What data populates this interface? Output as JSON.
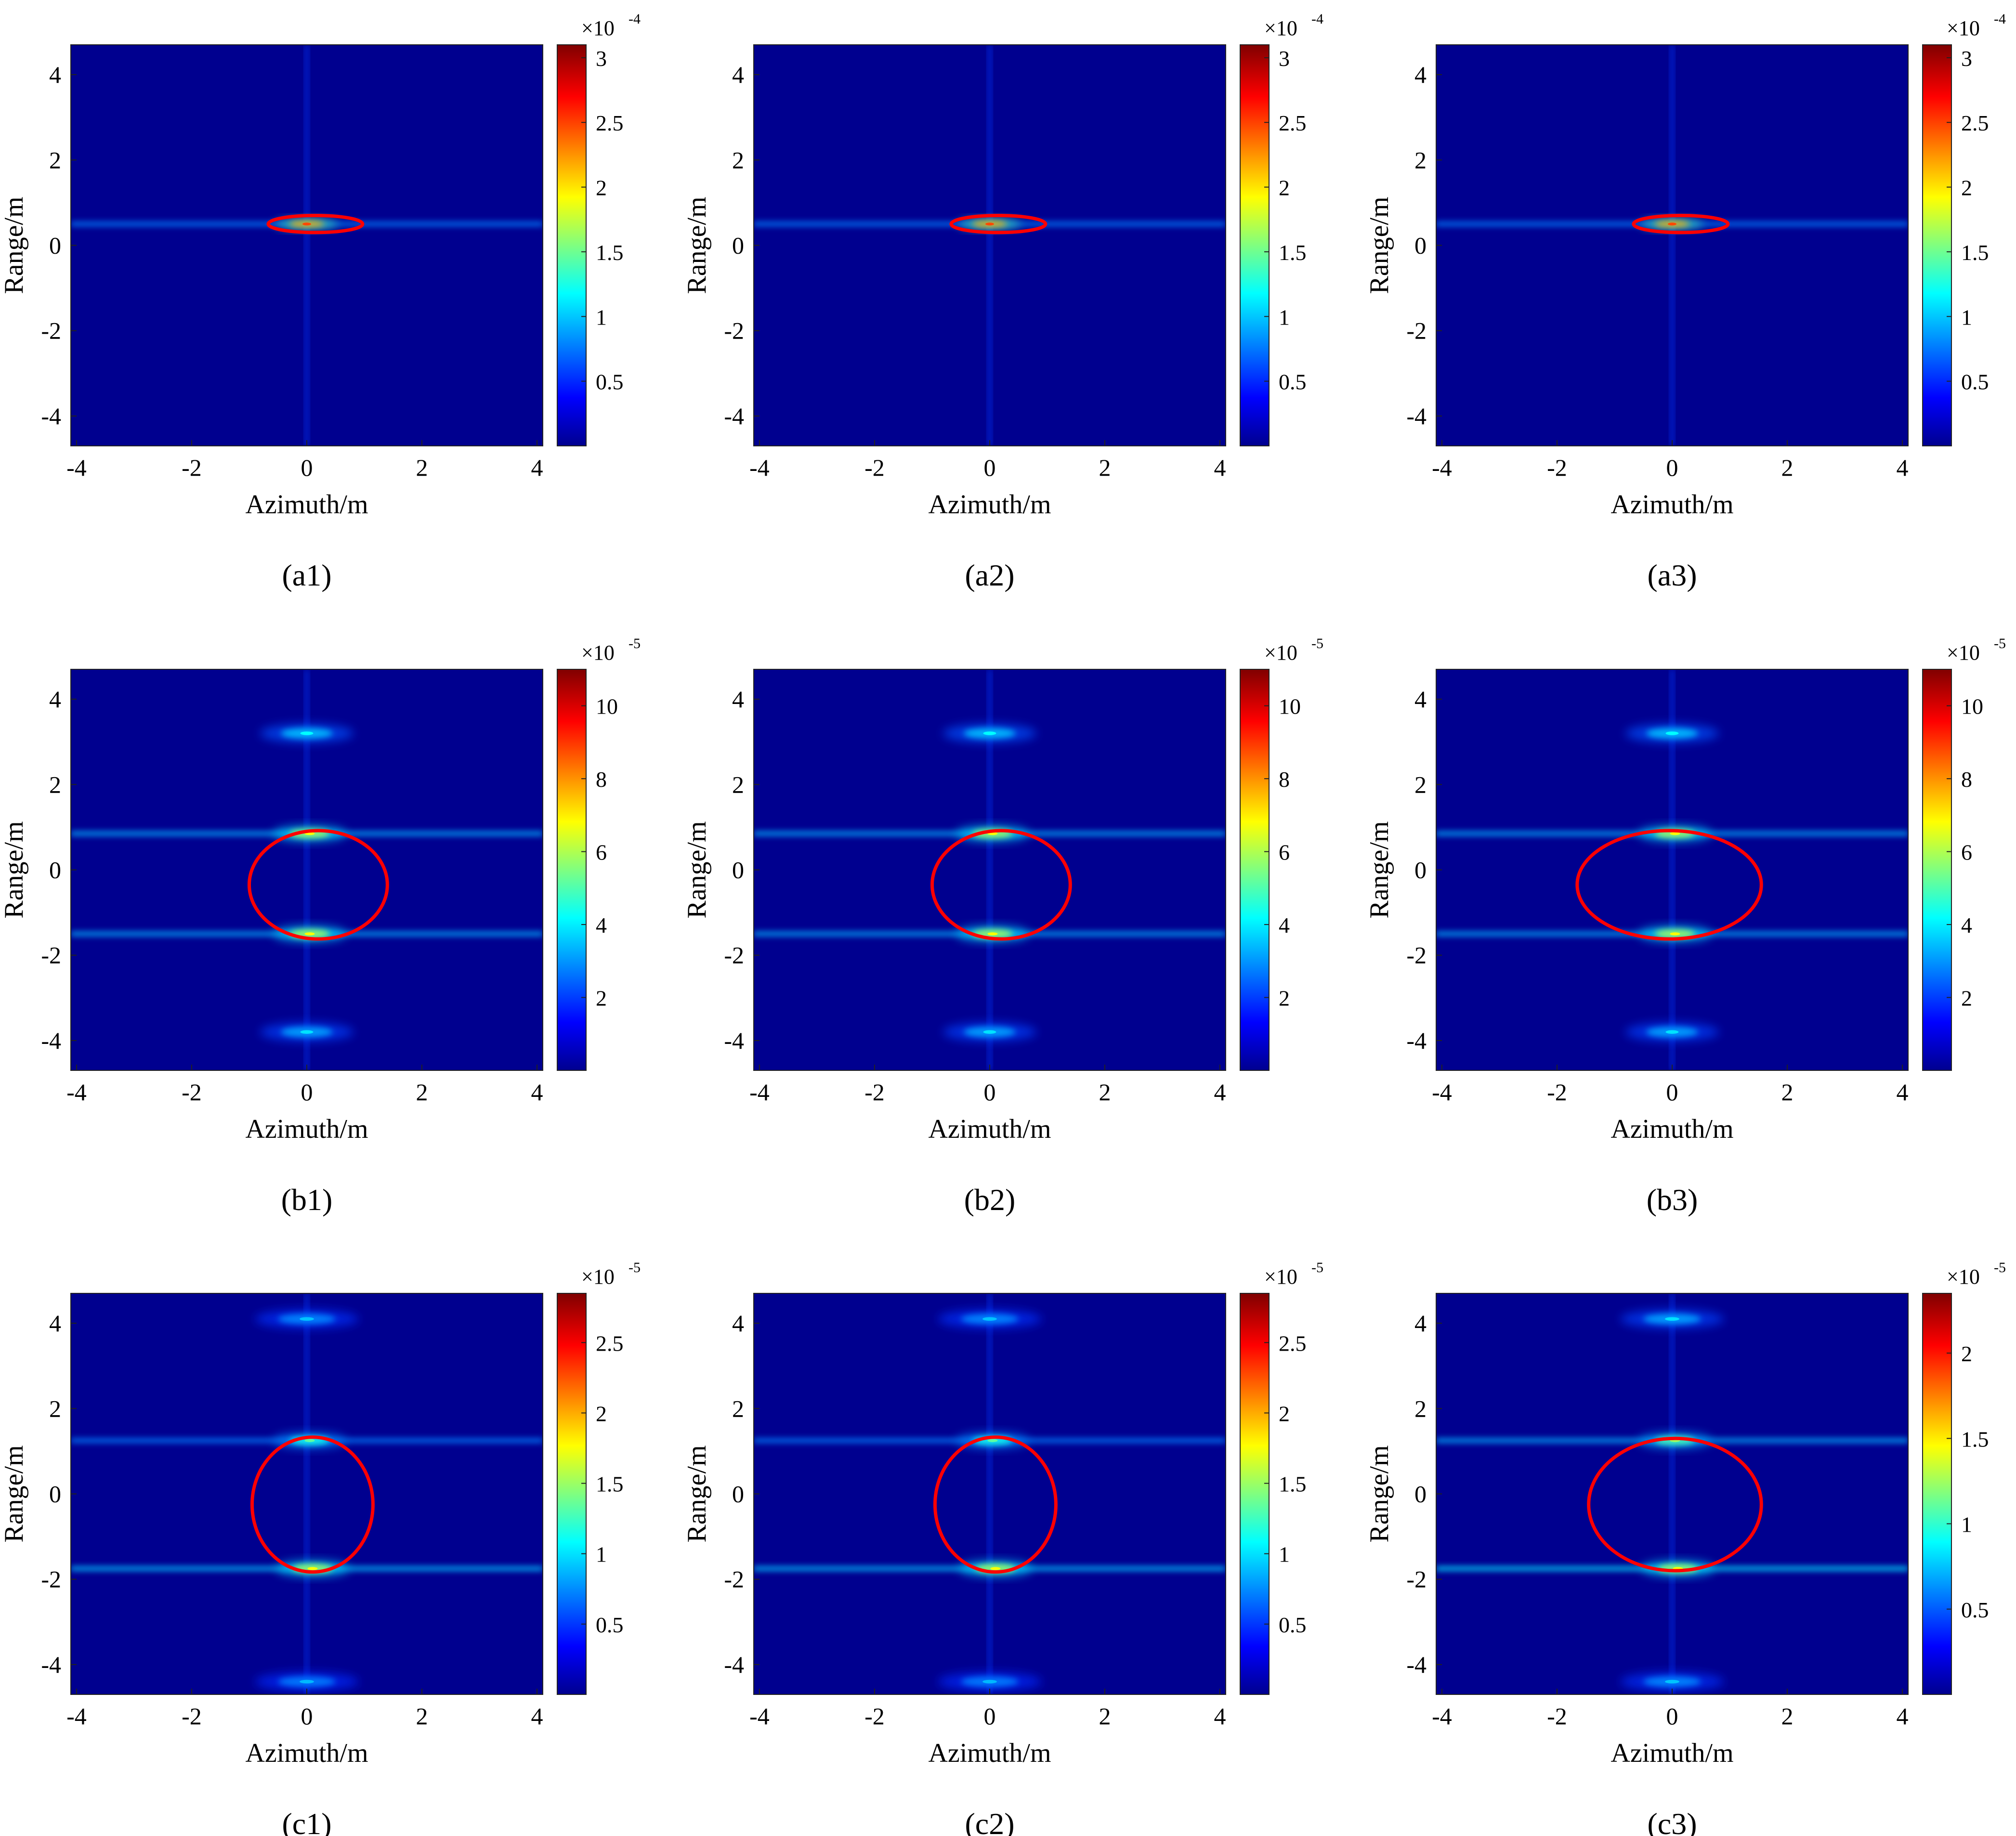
{
  "figure": {
    "colorscale": [
      "#00008f",
      "#0000ff",
      "#00ffff",
      "#ffff00",
      "#ff0000",
      "#800000"
    ],
    "background_color": "#00008f",
    "ellipse_color": "#ff0000"
  },
  "chart_data": [
    {
      "type": "heatmap",
      "panel_label": "(a1)",
      "xlabel": "Azimuth/m",
      "ylabel": "Range/m",
      "xlim": [
        -4.1,
        4.1
      ],
      "ylim": [
        -4.7,
        4.7
      ],
      "xticks": [
        -4,
        -2,
        0,
        2,
        4
      ],
      "yticks": [
        -4,
        -2,
        0,
        2,
        4
      ],
      "colorbar": {
        "max": 3.1,
        "ticks": [
          0.5,
          1,
          1.5,
          2,
          2.5,
          3
        ],
        "ticklabels": [
          "0.5",
          "1",
          "1.5",
          "2",
          "2.5",
          "3"
        ],
        "exponent_label": "×10",
        "exponent": "-4"
      },
      "hotspots": [
        {
          "x": 0.0,
          "y": 0.5,
          "intensity": 1.0,
          "sx": 0.3,
          "sy": 0.07
        }
      ],
      "sidelobes": [
        {
          "y": 0.5,
          "axis": "horizontal",
          "intensity": 0.15
        }
      ],
      "ellipse": {
        "cx": 0.15,
        "cy": 0.5,
        "rx": 0.82,
        "ry": 0.2
      }
    },
    {
      "type": "heatmap",
      "panel_label": "(a2)",
      "xlabel": "Azimuth/m",
      "ylabel": "Range/m",
      "xlim": [
        -4.1,
        4.1
      ],
      "ylim": [
        -4.7,
        4.7
      ],
      "xticks": [
        -4,
        -2,
        0,
        2,
        4
      ],
      "yticks": [
        -4,
        -2,
        0,
        2,
        4
      ],
      "colorbar": {
        "max": 3.1,
        "ticks": [
          0.5,
          1,
          1.5,
          2,
          2.5,
          3
        ],
        "ticklabels": [
          "0.5",
          "1",
          "1.5",
          "2",
          "2.5",
          "3"
        ],
        "exponent_label": "×10",
        "exponent": "-4"
      },
      "hotspots": [
        {
          "x": 0.0,
          "y": 0.5,
          "intensity": 1.0,
          "sx": 0.3,
          "sy": 0.07
        }
      ],
      "sidelobes": [
        {
          "y": 0.5,
          "axis": "horizontal",
          "intensity": 0.15
        }
      ],
      "ellipse": {
        "cx": 0.15,
        "cy": 0.5,
        "rx": 0.82,
        "ry": 0.2
      }
    },
    {
      "type": "heatmap",
      "panel_label": "(a3)",
      "xlabel": "Azimuth/m",
      "ylabel": "Range/m",
      "xlim": [
        -4.1,
        4.1
      ],
      "ylim": [
        -4.7,
        4.7
      ],
      "xticks": [
        -4,
        -2,
        0,
        2,
        4
      ],
      "yticks": [
        -4,
        -2,
        0,
        2,
        4
      ],
      "colorbar": {
        "max": 3.1,
        "ticks": [
          0.5,
          1,
          1.5,
          2,
          2.5,
          3
        ],
        "ticklabels": [
          "0.5",
          "1",
          "1.5",
          "2",
          "2.5",
          "3"
        ],
        "exponent_label": "×10",
        "exponent": "-4"
      },
      "hotspots": [
        {
          "x": 0.0,
          "y": 0.5,
          "intensity": 1.0,
          "sx": 0.3,
          "sy": 0.07
        }
      ],
      "sidelobes": [
        {
          "y": 0.5,
          "axis": "horizontal",
          "intensity": 0.15
        }
      ],
      "ellipse": {
        "cx": 0.15,
        "cy": 0.5,
        "rx": 0.82,
        "ry": 0.2
      }
    },
    {
      "type": "heatmap",
      "panel_label": "(b1)",
      "xlabel": "Azimuth/m",
      "ylabel": "Range/m",
      "xlim": [
        -4.1,
        4.1
      ],
      "ylim": [
        -4.7,
        4.7
      ],
      "xticks": [
        -4,
        -2,
        0,
        2,
        4
      ],
      "yticks": [
        -4,
        -2,
        0,
        2,
        4
      ],
      "colorbar": {
        "max": 11.0,
        "ticks": [
          2,
          4,
          6,
          8,
          10
        ],
        "ticklabels": [
          "2",
          "4",
          "6",
          "8",
          "10"
        ],
        "exponent_label": "×10",
        "exponent": "-5"
      },
      "hotspots": [
        {
          "x": 0.05,
          "y": 0.85,
          "intensity": 0.7,
          "sx": 0.35,
          "sy": 0.1
        },
        {
          "x": 0.05,
          "y": -1.5,
          "intensity": 0.7,
          "sx": 0.35,
          "sy": 0.1
        },
        {
          "x": 0.0,
          "y": 3.2,
          "intensity": 0.3,
          "sx": 0.45,
          "sy": 0.12
        },
        {
          "x": 0.0,
          "y": -3.8,
          "intensity": 0.25,
          "sx": 0.45,
          "sy": 0.12
        }
      ],
      "sidelobes": [
        {
          "y": 0.85,
          "axis": "horizontal",
          "intensity": 0.2
        },
        {
          "y": -1.5,
          "axis": "horizontal",
          "intensity": 0.2
        }
      ],
      "ellipse": {
        "cx": 0.2,
        "cy": -0.35,
        "rx": 1.2,
        "ry": 1.27
      }
    },
    {
      "type": "heatmap",
      "panel_label": "(b2)",
      "xlabel": "Azimuth/m",
      "ylabel": "Range/m",
      "xlim": [
        -4.1,
        4.1
      ],
      "ylim": [
        -4.7,
        4.7
      ],
      "xticks": [
        -4,
        -2,
        0,
        2,
        4
      ],
      "yticks": [
        -4,
        -2,
        0,
        2,
        4
      ],
      "colorbar": {
        "max": 11.0,
        "ticks": [
          2,
          4,
          6,
          8,
          10
        ],
        "ticklabels": [
          "2",
          "4",
          "6",
          "8",
          "10"
        ],
        "exponent_label": "×10",
        "exponent": "-5"
      },
      "hotspots": [
        {
          "x": 0.05,
          "y": 0.85,
          "intensity": 0.7,
          "sx": 0.35,
          "sy": 0.1
        },
        {
          "x": 0.05,
          "y": -1.5,
          "intensity": 0.7,
          "sx": 0.35,
          "sy": 0.1
        },
        {
          "x": 0.0,
          "y": 3.2,
          "intensity": 0.3,
          "sx": 0.45,
          "sy": 0.12
        },
        {
          "x": 0.0,
          "y": -3.8,
          "intensity": 0.25,
          "sx": 0.45,
          "sy": 0.12
        }
      ],
      "sidelobes": [
        {
          "y": 0.85,
          "axis": "horizontal",
          "intensity": 0.2
        },
        {
          "y": -1.5,
          "axis": "horizontal",
          "intensity": 0.2
        }
      ],
      "ellipse": {
        "cx": 0.2,
        "cy": -0.35,
        "rx": 1.2,
        "ry": 1.27
      }
    },
    {
      "type": "heatmap",
      "panel_label": "(b3)",
      "xlabel": "Azimuth/m",
      "ylabel": "Range/m",
      "xlim": [
        -4.1,
        4.1
      ],
      "ylim": [
        -4.7,
        4.7
      ],
      "xticks": [
        -4,
        -2,
        0,
        2,
        4
      ],
      "yticks": [
        -4,
        -2,
        0,
        2,
        4
      ],
      "colorbar": {
        "max": 11.0,
        "ticks": [
          2,
          4,
          6,
          8,
          10
        ],
        "ticklabels": [
          "2",
          "4",
          "6",
          "8",
          "10"
        ],
        "exponent_label": "×10",
        "exponent": "-5"
      },
      "hotspots": [
        {
          "x": 0.05,
          "y": 0.85,
          "intensity": 0.7,
          "sx": 0.35,
          "sy": 0.1
        },
        {
          "x": 0.05,
          "y": -1.5,
          "intensity": 0.7,
          "sx": 0.35,
          "sy": 0.1
        },
        {
          "x": 0.0,
          "y": 3.2,
          "intensity": 0.3,
          "sx": 0.45,
          "sy": 0.12
        },
        {
          "x": 0.0,
          "y": -3.8,
          "intensity": 0.25,
          "sx": 0.45,
          "sy": 0.12
        }
      ],
      "sidelobes": [
        {
          "y": 0.85,
          "axis": "horizontal",
          "intensity": 0.2
        },
        {
          "y": -1.5,
          "axis": "horizontal",
          "intensity": 0.2
        }
      ],
      "ellipse": {
        "cx": -0.05,
        "cy": -0.35,
        "rx": 1.6,
        "ry": 1.27
      }
    },
    {
      "type": "heatmap",
      "panel_label": "(c1)",
      "xlabel": "Azimuth/m",
      "ylabel": "Range/m",
      "xlim": [
        -4.1,
        4.1
      ],
      "ylim": [
        -4.7,
        4.7
      ],
      "xticks": [
        -4,
        -2,
        0,
        2,
        4
      ],
      "yticks": [
        -4,
        -2,
        0,
        2,
        4
      ],
      "colorbar": {
        "max": 2.85,
        "ticks": [
          0.5,
          1,
          1.5,
          2,
          2.5
        ],
        "ticklabels": [
          "0.5",
          "1",
          "1.5",
          "2",
          "2.5"
        ],
        "exponent_label": "×10",
        "exponent": "-5"
      },
      "hotspots": [
        {
          "x": 0.05,
          "y": 1.25,
          "intensity": 0.45,
          "sx": 0.35,
          "sy": 0.1
        },
        {
          "x": 0.1,
          "y": -1.75,
          "intensity": 0.7,
          "sx": 0.35,
          "sy": 0.1
        },
        {
          "x": 0.0,
          "y": 4.1,
          "intensity": 0.2,
          "sx": 0.5,
          "sy": 0.12
        },
        {
          "x": 0.0,
          "y": -4.4,
          "intensity": 0.18,
          "sx": 0.5,
          "sy": 0.12
        }
      ],
      "sidelobes": [
        {
          "y": 1.25,
          "axis": "horizontal",
          "intensity": 0.15
        },
        {
          "y": -1.75,
          "axis": "horizontal",
          "intensity": 0.22
        }
      ],
      "ellipse": {
        "cx": 0.1,
        "cy": -0.25,
        "rx": 1.05,
        "ry": 1.58
      }
    },
    {
      "type": "heatmap",
      "panel_label": "(c2)",
      "xlabel": "Azimuth/m",
      "ylabel": "Range/m",
      "xlim": [
        -4.1,
        4.1
      ],
      "ylim": [
        -4.7,
        4.7
      ],
      "xticks": [
        -4,
        -2,
        0,
        2,
        4
      ],
      "yticks": [
        -4,
        -2,
        0,
        2,
        4
      ],
      "colorbar": {
        "max": 2.85,
        "ticks": [
          0.5,
          1,
          1.5,
          2,
          2.5
        ],
        "ticklabels": [
          "0.5",
          "1",
          "1.5",
          "2",
          "2.5"
        ],
        "exponent_label": "×10",
        "exponent": "-5"
      },
      "hotspots": [
        {
          "x": 0.05,
          "y": 1.25,
          "intensity": 0.45,
          "sx": 0.35,
          "sy": 0.1
        },
        {
          "x": 0.1,
          "y": -1.75,
          "intensity": 0.7,
          "sx": 0.35,
          "sy": 0.1
        },
        {
          "x": 0.0,
          "y": 4.1,
          "intensity": 0.2,
          "sx": 0.5,
          "sy": 0.12
        },
        {
          "x": 0.0,
          "y": -4.4,
          "intensity": 0.18,
          "sx": 0.5,
          "sy": 0.12
        }
      ],
      "sidelobes": [
        {
          "y": 1.25,
          "axis": "horizontal",
          "intensity": 0.15
        },
        {
          "y": -1.75,
          "axis": "horizontal",
          "intensity": 0.22
        }
      ],
      "ellipse": {
        "cx": 0.1,
        "cy": -0.25,
        "rx": 1.05,
        "ry": 1.58
      }
    },
    {
      "type": "heatmap",
      "panel_label": "(c3)",
      "xlabel": "Azimuth/m",
      "ylabel": "Range/m",
      "xlim": [
        -4.1,
        4.1
      ],
      "ylim": [
        -4.7,
        4.7
      ],
      "xticks": [
        -4,
        -2,
        0,
        2,
        4
      ],
      "yticks": [
        -4,
        -2,
        0,
        2,
        4
      ],
      "colorbar": {
        "max": 2.35,
        "ticks": [
          0.5,
          1,
          1.5,
          2
        ],
        "ticklabels": [
          "0.5",
          "1",
          "1.5",
          "2"
        ],
        "exponent_label": "×10",
        "exponent": "-5"
      },
      "hotspots": [
        {
          "x": 0.05,
          "y": 1.25,
          "intensity": 0.55,
          "sx": 0.35,
          "sy": 0.1
        },
        {
          "x": 0.1,
          "y": -1.75,
          "intensity": 0.7,
          "sx": 0.35,
          "sy": 0.1
        },
        {
          "x": 0.0,
          "y": 4.1,
          "intensity": 0.25,
          "sx": 0.5,
          "sy": 0.12
        },
        {
          "x": 0.0,
          "y": -4.4,
          "intensity": 0.2,
          "sx": 0.5,
          "sy": 0.12
        }
      ],
      "sidelobes": [
        {
          "y": 1.25,
          "axis": "horizontal",
          "intensity": 0.2
        },
        {
          "y": -1.75,
          "axis": "horizontal",
          "intensity": 0.25
        }
      ],
      "ellipse": {
        "cx": 0.05,
        "cy": -0.25,
        "rx": 1.5,
        "ry": 1.55
      }
    }
  ]
}
